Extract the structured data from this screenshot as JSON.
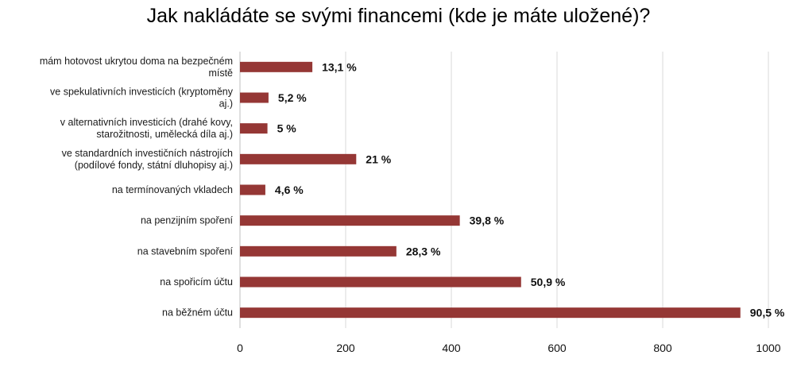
{
  "chart_data": {
    "type": "bar",
    "orientation": "horizontal",
    "title": "Jak nakládáte se svými financemi (kde je máte uložené)?",
    "categories": [
      "mám hotovost ukrytou doma na bezpečném místě",
      "ve spekulativních investicích (kryptoměny aj.)",
      "v alternativních investicích (drahé kovy, starožitnosti, umělecká díla aj.)",
      "ve standardních investičních nástrojích (podílové fondy, státní dluhopisy aj.)",
      "na termínovaných vkladech",
      "na penzijním spoření",
      "na stavebním spoření",
      "na spořicím účtu",
      "na běžném účtu"
    ],
    "category_lines": [
      [
        "mám hotovost ukrytou doma na bezpečném",
        "místě"
      ],
      [
        "ve spekulativních investicích (kryptoměny",
        "aj.)"
      ],
      [
        "v alternativních investicích (drahé kovy,",
        "starožitnosti, umělecká díla aj.)"
      ],
      [
        "ve standardních investičních nástrojích",
        "(podílové fondy, státní dluhopisy aj.)"
      ],
      [
        "na termínovaných vkladech"
      ],
      [
        "na penzijním spoření"
      ],
      [
        "na stavebním spoření"
      ],
      [
        "na spořicím účtu"
      ],
      [
        "na běžném účtu"
      ]
    ],
    "values": [
      137,
      54,
      52,
      220,
      48,
      416,
      296,
      532,
      947
    ],
    "data_labels": [
      "13,1 %",
      "5,2 %",
      "5 %",
      "21 %",
      "4,6 %",
      "39,8 %",
      "28,3 %",
      "50,9 %",
      "90,5 %"
    ],
    "xlim": [
      0,
      1000
    ],
    "xticks": [
      0,
      200,
      400,
      600,
      800,
      1000
    ],
    "grid": "vertical",
    "legend": "none",
    "bar_color": "#953735",
    "grid_color": "#d9d9d9"
  }
}
